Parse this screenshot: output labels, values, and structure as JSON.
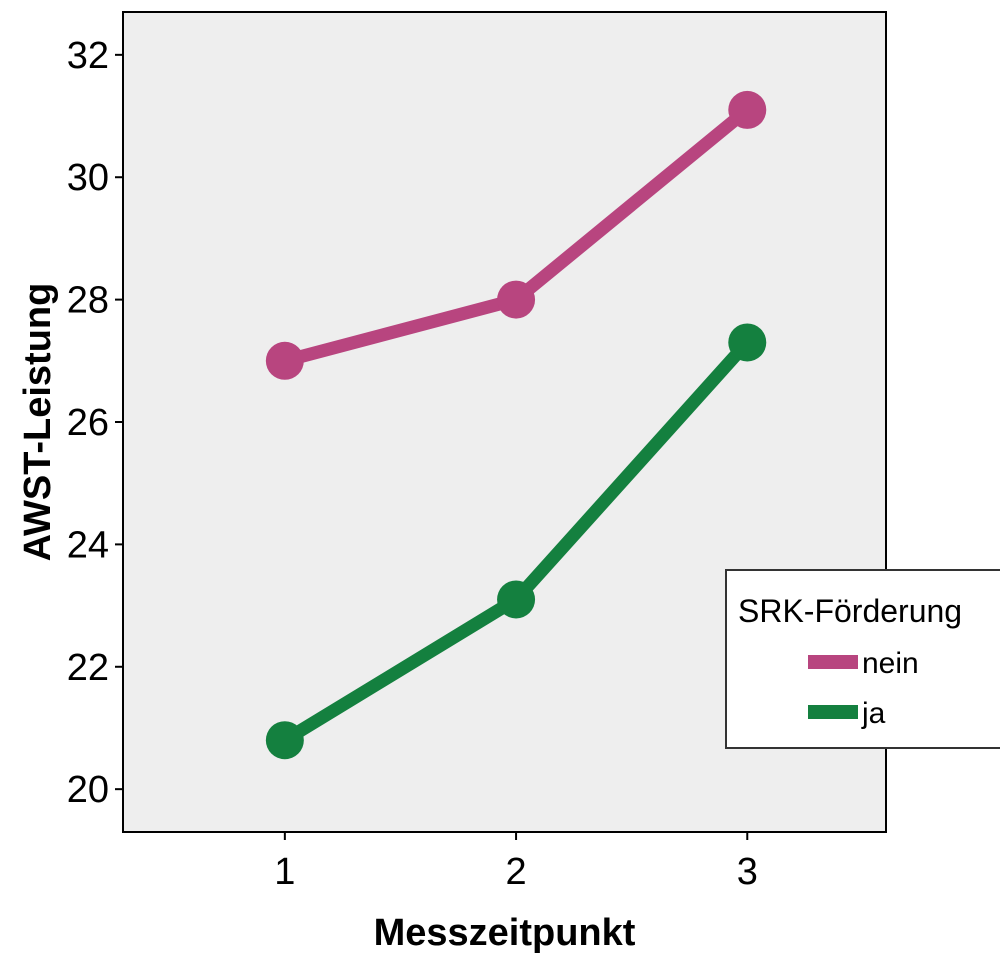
{
  "chart_data": {
    "type": "line",
    "title": "",
    "xlabel": "Messzeitpunkt",
    "ylabel": "AWST-Leistung",
    "x": [
      1,
      2,
      3
    ],
    "x_ticks": [
      "1",
      "2",
      "3"
    ],
    "xlim": [
      0.3,
      3.6
    ],
    "ylim": [
      19.3,
      32.7
    ],
    "y_ticks": [
      20,
      22,
      24,
      26,
      28,
      30,
      32
    ],
    "grid": false,
    "legend": {
      "title": "SRK-Förderung",
      "position": "right"
    },
    "series": [
      {
        "name": "nein",
        "values": [
          27.0,
          28.0,
          31.1
        ],
        "color": "#b8457f"
      },
      {
        "name": "ja",
        "values": [
          20.8,
          23.1,
          27.3
        ],
        "color": "#14803f"
      }
    ],
    "plot_background": "#eeeeee"
  }
}
